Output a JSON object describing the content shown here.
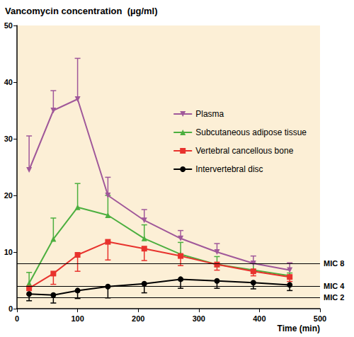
{
  "chart_data": {
    "type": "line",
    "title": "Vancomycin concentration  (µg/ml)",
    "x_label": "Time (min)",
    "x": [
      20,
      60,
      100,
      150,
      210,
      270,
      330,
      390,
      450
    ],
    "xlim": [
      0,
      500
    ],
    "xticks": [
      0,
      100,
      200,
      300,
      400,
      500
    ],
    "ylim": [
      0,
      50
    ],
    "yticks": [
      0,
      10,
      20,
      30,
      40,
      50
    ],
    "grid": false,
    "legend": "right",
    "series": [
      {
        "name": "Plasma",
        "color": "#a0589a",
        "marker": "triangle-down",
        "values": [
          24.5,
          35,
          37,
          20,
          15.6,
          12.4,
          10,
          8,
          6.8
        ],
        "error_upper": [
          6,
          3.5,
          7.2,
          3.2,
          1.9,
          1.4,
          1.5,
          1.3,
          1.3
        ]
      },
      {
        "name": "Subcutaneous adipose tissue",
        "color": "#4caf3f",
        "marker": "triangle",
        "values": [
          4.5,
          12.3,
          17.9,
          16.5,
          12.4,
          9.6,
          7.8,
          6.8,
          5.8
        ],
        "error_upper": [
          1.9,
          3.7,
          4.2,
          3.5,
          2.4,
          2.1,
          1.4,
          1.2,
          0.5
        ]
      },
      {
        "name": "Vertebral cancellous bone",
        "color": "#e8322d",
        "marker": "square",
        "values": [
          3.6,
          6.2,
          9.5,
          11.8,
          10.6,
          9.3,
          7.8,
          6.6,
          5.6
        ],
        "error_lower": [
          1.1,
          1.9,
          2.9,
          3.2,
          2.1,
          1.7,
          1.0,
          0.8,
          0.8
        ]
      },
      {
        "name": "Intervertebral disc",
        "color": "#000000",
        "marker": "circle",
        "values": [
          2.6,
          2.4,
          3.2,
          3.9,
          4.4,
          5.2,
          4.9,
          4.6,
          4.2
        ],
        "error_lower": [
          1.2,
          1.4,
          1.4,
          2.0,
          1.6,
          1.6,
          1.3,
          1.1,
          1.0
        ]
      }
    ],
    "annotations": [
      {
        "value": 8,
        "label": "MIC 8"
      },
      {
        "value": 4,
        "label": "MIC 4"
      },
      {
        "value": 2,
        "label": "MIC 2"
      }
    ]
  }
}
